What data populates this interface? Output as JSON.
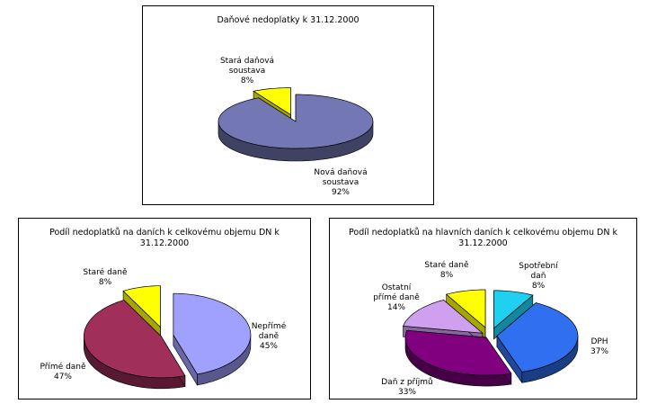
{
  "chart_data": [
    {
      "type": "pie",
      "title": "Daňové nedoplatky k 31.12.2000",
      "slices": [
        {
          "label": "Nová daňová\nsoustava",
          "pct_label": "92%",
          "value": 92,
          "color": "#7378b4"
        },
        {
          "label": "Stará daňová\nsoustava",
          "pct_label": "8%",
          "value": 8,
          "color": "#ffff00"
        }
      ]
    },
    {
      "type": "pie",
      "title": "Podíl nedoplatků na daních k celkovému objemu DN k 31.12.2000",
      "slices": [
        {
          "label": "Nepřímé\ndaně",
          "pct_label": "45%",
          "value": 45,
          "color": "#a0a0ff"
        },
        {
          "label": "Přímé daně",
          "pct_label": "47%",
          "value": 47,
          "color": "#a0305a"
        },
        {
          "label": "Staré daně",
          "pct_label": "8%",
          "value": 8,
          "color": "#ffff00"
        }
      ]
    },
    {
      "type": "pie",
      "title": "Podíl nedoplatků na hlavních daních k celkovému objemu DN k 31.12.2000",
      "slices": [
        {
          "label": "Spotřební\ndaň",
          "pct_label": "8%",
          "value": 8,
          "color": "#20d0f0"
        },
        {
          "label": "DPH",
          "pct_label": "37%",
          "value": 37,
          "color": "#3070f0"
        },
        {
          "label": "Daň z příjmů",
          "pct_label": "33%",
          "value": 33,
          "color": "#800080"
        },
        {
          "label": "Ostatní\npřímé daně",
          "pct_label": "14%",
          "value": 14,
          "color": "#d0a0f0"
        },
        {
          "label": "Staré daně",
          "pct_label": "8%",
          "value": 8,
          "color": "#ffff00"
        }
      ]
    }
  ]
}
